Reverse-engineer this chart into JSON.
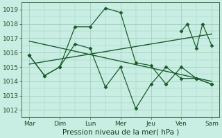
{
  "bg_color": "#c8eee4",
  "grid_color": "#a0c8b8",
  "line_color": "#1a5c28",
  "xlabel": "Pression niveau de la mer( hPa )",
  "xtick_labels": [
    "Mar",
    "Dim",
    "Lun",
    "Mer",
    "Jeu",
    "Ven",
    "Sam"
  ],
  "xtick_positions": [
    0,
    1,
    2,
    3,
    4,
    5,
    6
  ],
  "ylim": [
    1011.5,
    1019.5
  ],
  "yticks": [
    1012,
    1013,
    1014,
    1015,
    1016,
    1017,
    1018,
    1019
  ],
  "series1_x": [
    0,
    0.5,
    1.0,
    1.5,
    2.0,
    2.5,
    3.0,
    3.5,
    4.0,
    4.5,
    5.0,
    5.5,
    6.0
  ],
  "series1_y": [
    1015.8,
    1014.4,
    1015.0,
    1017.8,
    1017.8,
    1019.1,
    1018.8,
    1015.3,
    1015.1,
    1013.8,
    1015.0,
    1014.2,
    1013.8
  ],
  "series2_x": [
    0,
    0.5,
    1.0,
    1.5,
    2.0,
    2.5,
    3.0,
    3.5,
    4.0,
    4.5,
    5.0,
    5.5,
    6.0
  ],
  "series2_y": [
    1015.8,
    1014.4,
    1015.0,
    1016.6,
    1016.3,
    1013.6,
    1015.0,
    1012.1,
    1013.8,
    1015.0,
    1014.2,
    1014.2,
    1013.8
  ],
  "series3_x": [
    5.0,
    5.2,
    5.5,
    5.7,
    6.0
  ],
  "series3_y": [
    1017.5,
    1018.0,
    1016.3,
    1018.0,
    1016.5
  ],
  "trend1_x": [
    0,
    6
  ],
  "trend1_y": [
    1015.2,
    1017.3
  ],
  "trend2_x": [
    0,
    6
  ],
  "trend2_y": [
    1016.8,
    1014.0
  ]
}
